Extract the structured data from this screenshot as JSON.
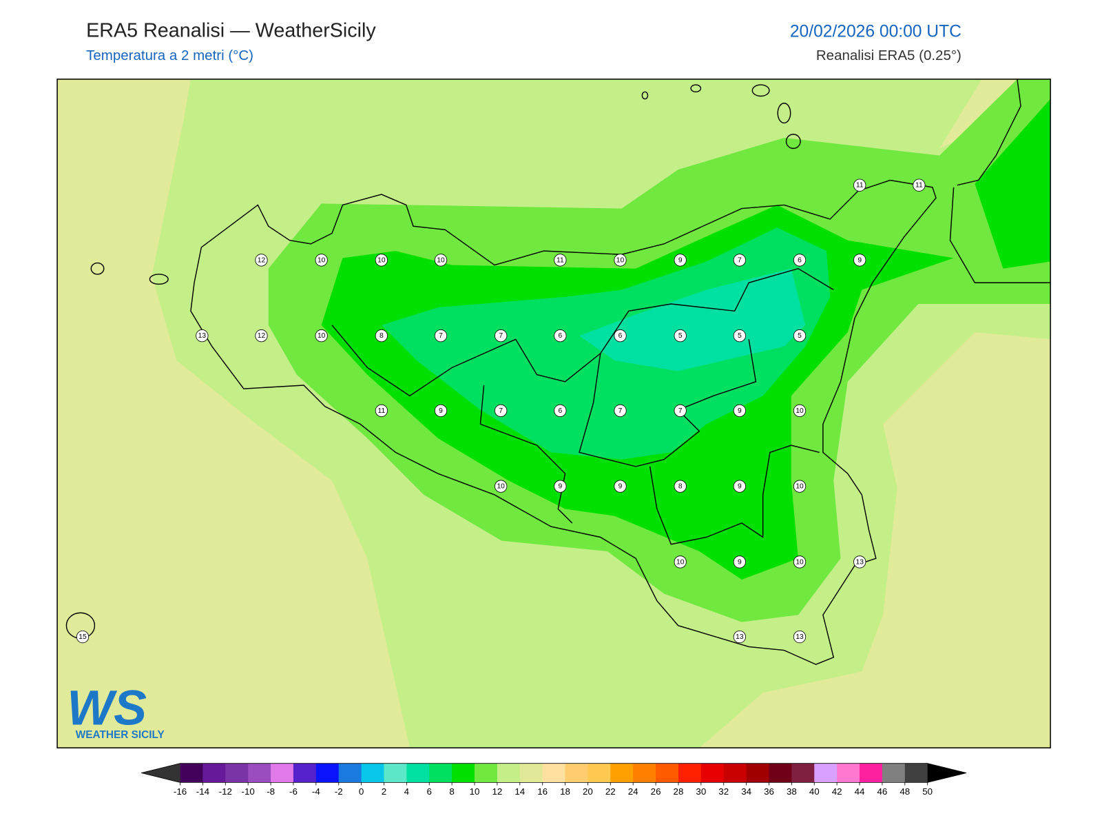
{
  "header": {
    "title": "ERA5 Reanalisi — WeatherSicily",
    "subtitle": "Temperatura a 2 metri (°C)",
    "datetime": "20/02/2026 00:00 UTC",
    "source": "Reanalisi ERA5 (0.25°)"
  },
  "map": {
    "points": [
      12,
      10,
      10,
      10,
      11,
      10,
      9,
      7,
      6,
      9,
      13,
      12,
      10,
      8,
      7,
      7,
      6,
      6,
      5,
      5,
      5,
      11,
      9,
      7,
      6,
      7,
      7,
      9,
      10,
      10,
      9,
      9,
      8,
      9,
      10,
      10,
      9,
      10,
      13,
      15,
      13,
      13,
      11,
      11
    ]
  },
  "colorbar": {
    "ticks": [
      -16,
      -14,
      -12,
      -10,
      -8,
      -6,
      -4,
      -2,
      0,
      2,
      4,
      6,
      8,
      10,
      12,
      14,
      16,
      18,
      20,
      22,
      24,
      26,
      28,
      30,
      32,
      34,
      36,
      38,
      40,
      42,
      44,
      46,
      48,
      50
    ],
    "colors": [
      "#42005a",
      "#661a99",
      "#7b33a8",
      "#9a4dbf",
      "#e07ae8",
      "#5522cc",
      "#0a14ff",
      "#1a7ae0",
      "#08c6e8",
      "#5ce8c8",
      "#00e0a0",
      "#00e060",
      "#00e000",
      "#70e840",
      "#c4ee88",
      "#e0e898",
      "#ffe0a0",
      "#ffcc70",
      "#ffc850",
      "#ffa000",
      "#ff8000",
      "#ff5a00",
      "#ff2000",
      "#e60000",
      "#c80000",
      "#a00000",
      "#700018",
      "#802040",
      "#d8a0ff",
      "#ff78d0",
      "#ff20a0",
      "#808080",
      "#404040"
    ],
    "under_color": "#333333",
    "over_color": "#000000"
  },
  "logo": {
    "mark": "WS",
    "name": "WEATHER SICILY"
  }
}
